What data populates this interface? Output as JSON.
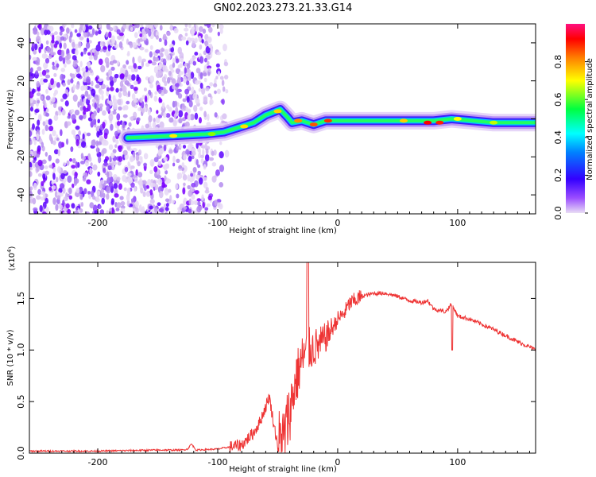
{
  "title": "GN02.2023.273.21.33.G14",
  "chart_data": [
    {
      "type": "heatmap",
      "xlabel": "Height of straight line (km)",
      "ylabel": "Frequency (Hz)",
      "xlim": [
        -257,
        165
      ],
      "ylim": [
        -50,
        50
      ],
      "xticks": [
        -200,
        -100,
        0,
        100
      ],
      "yticks": [
        40,
        20,
        0,
        -20,
        -40
      ],
      "colorbar": {
        "label": "Normalized spectral amplitude",
        "range": [
          0.0,
          1.0
        ],
        "ticks": [
          "0.0",
          "0.2",
          "0.4",
          "0.6",
          "0.8"
        ],
        "colors": [
          "#e9ddf5",
          "#7b00ff",
          "#0000ff",
          "#00ffff",
          "#00ff00",
          "#ffff00",
          "#ff8000",
          "#ff0000",
          "#ff0080"
        ]
      },
      "ridge": [
        {
          "x": -175,
          "y": -10
        },
        {
          "x": -140,
          "y": -9
        },
        {
          "x": -110,
          "y": -8
        },
        {
          "x": -95,
          "y": -7
        },
        {
          "x": -80,
          "y": -4
        },
        {
          "x": -70,
          "y": -2
        },
        {
          "x": -60,
          "y": 2
        },
        {
          "x": -48,
          "y": 5
        },
        {
          "x": -42,
          "y": 1
        },
        {
          "x": -38,
          "y": -2
        },
        {
          "x": -30,
          "y": -1
        },
        {
          "x": -20,
          "y": -3
        },
        {
          "x": -10,
          "y": -1
        },
        {
          "x": 0,
          "y": -1
        },
        {
          "x": 20,
          "y": -1
        },
        {
          "x": 50,
          "y": -1
        },
        {
          "x": 80,
          "y": -1
        },
        {
          "x": 95,
          "y": 0
        },
        {
          "x": 130,
          "y": -2
        },
        {
          "x": 165,
          "y": -2
        }
      ]
    },
    {
      "type": "line",
      "xlabel": "Height of straight line (km)",
      "ylabel": "SNR (10 * v/v)",
      "scale_label": "(x10",
      "scale_exp": "4",
      "scale_close": ")",
      "xlim": [
        -257,
        165
      ],
      "ylim": [
        0.0,
        1.85
      ],
      "xticks": [
        -200,
        -100,
        0,
        100
      ],
      "yticks": [
        "0.0",
        "0.5",
        "1.0",
        "1.5"
      ],
      "color": "#ee3333",
      "x": [
        -257,
        -200,
        -150,
        -130,
        -125,
        -122,
        -118,
        -100,
        -80,
        -70,
        -65,
        -60,
        -57,
        -55,
        -52,
        -50,
        -45,
        -40,
        -35,
        -30,
        -25,
        -20,
        -15,
        -10,
        -5,
        0,
        5,
        10,
        20,
        30,
        40,
        50,
        60,
        70,
        75,
        80,
        90,
        95,
        100,
        110,
        120,
        130,
        140,
        150,
        160,
        165
      ],
      "y": [
        0.02,
        0.02,
        0.03,
        0.03,
        0.04,
        0.09,
        0.03,
        0.04,
        0.08,
        0.2,
        0.3,
        0.45,
        0.55,
        0.4,
        0.2,
        0.1,
        0.15,
        0.4,
        0.7,
        0.9,
        1.0,
        1.02,
        1.05,
        1.12,
        1.2,
        1.3,
        1.35,
        1.45,
        1.52,
        1.55,
        1.55,
        1.52,
        1.48,
        1.46,
        1.48,
        1.4,
        1.37,
        1.45,
        1.33,
        1.3,
        1.25,
        1.2,
        1.14,
        1.08,
        1.03,
        1.0
      ]
    }
  ]
}
